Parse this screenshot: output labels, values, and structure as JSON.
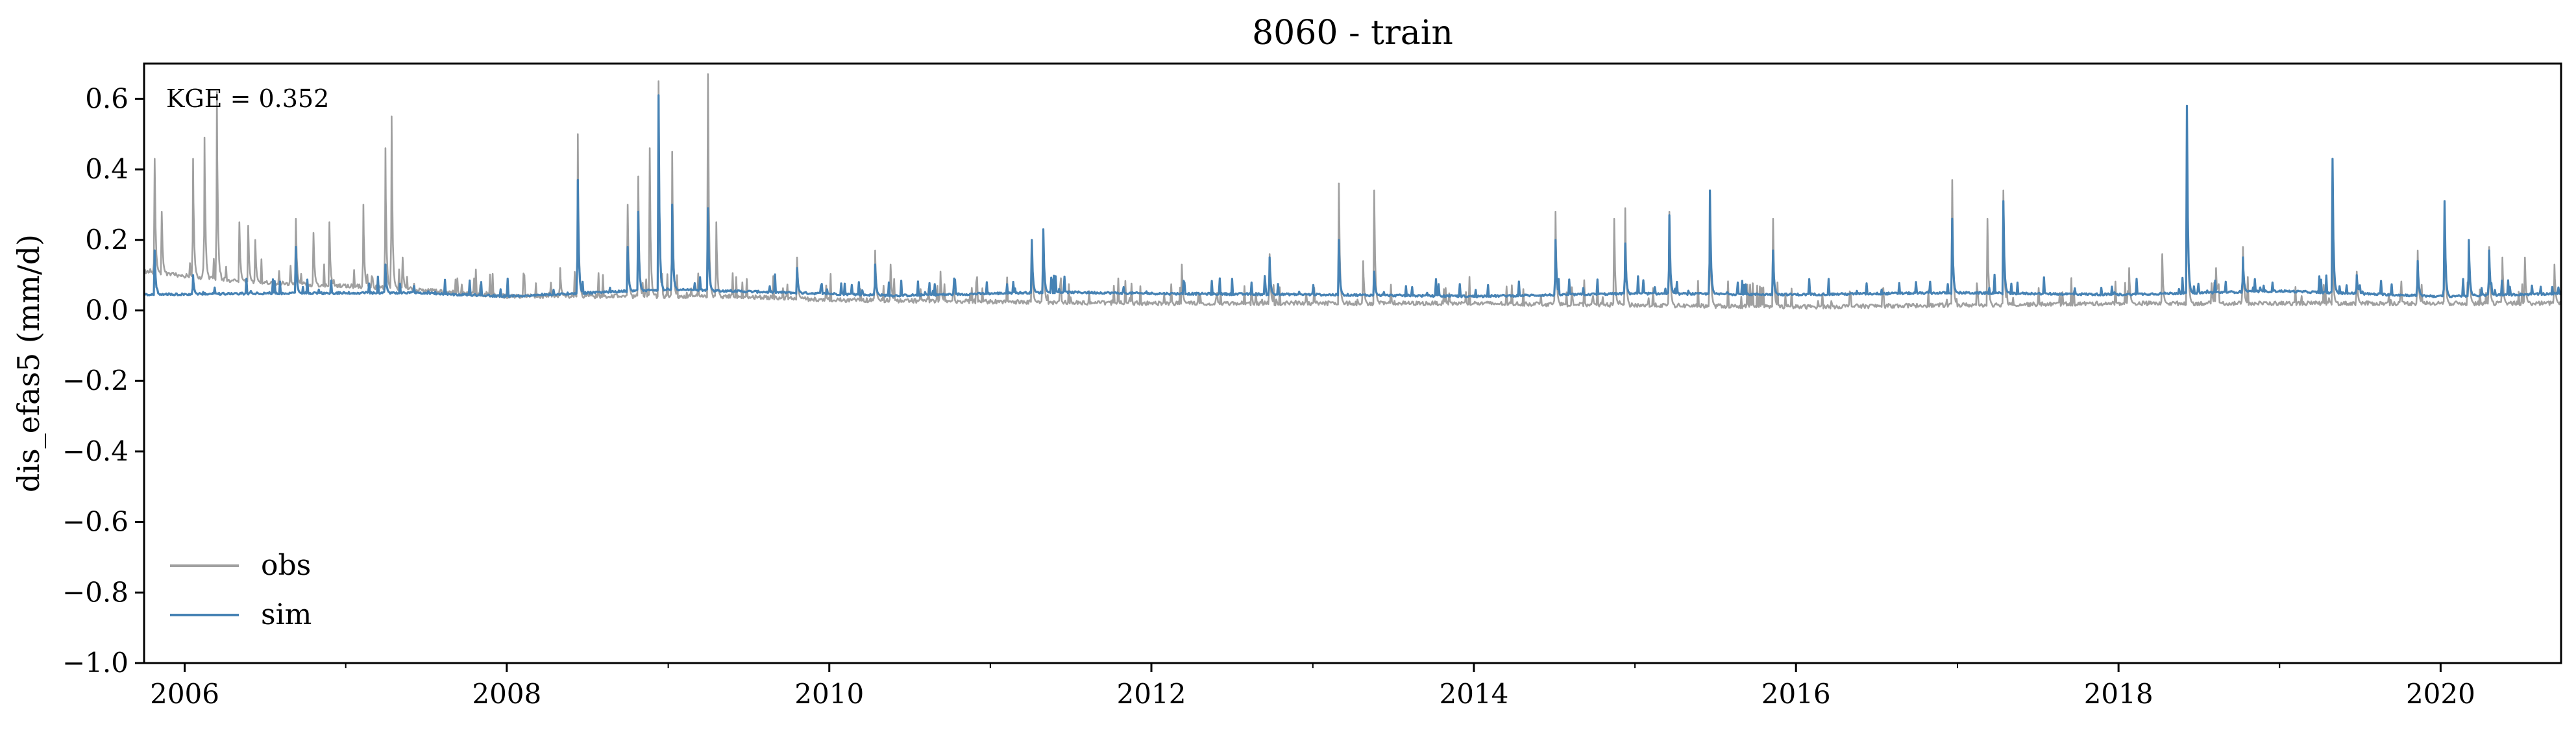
{
  "chart_data": {
    "type": "line",
    "title": "8060 - train",
    "xlabel": "",
    "ylabel": "dis_efas5 (mm/d)",
    "xlim": [
      "2005-10-01",
      "2020-09-30"
    ],
    "ylim": [
      -1.0,
      0.7
    ],
    "yticks": [
      -1.0,
      -0.8,
      -0.6,
      -0.4,
      -0.2,
      0.0,
      0.2,
      0.4,
      0.6
    ],
    "ytick_labels": [
      "−1.0",
      "−0.8",
      "−0.6",
      "−0.4",
      "−0.2",
      "0.0",
      "0.2",
      "0.4",
      "0.6"
    ],
    "xticks": [
      "2006-01-01",
      "2008-01-01",
      "2010-01-01",
      "2012-01-01",
      "2014-01-01",
      "2016-01-01",
      "2018-01-01",
      "2020-01-01"
    ],
    "xtick_labels": [
      "2006",
      "2008",
      "2010",
      "2012",
      "2014",
      "2016",
      "2018",
      "2020"
    ],
    "minor_xticks_yearly": true,
    "grid": false,
    "legend": {
      "placement": "lower-left",
      "entries": [
        "obs",
        "sim"
      ]
    },
    "annotation": "KGE = 0.352",
    "series": [
      {
        "name": "obs",
        "color": "#a0a0a0",
        "baseline": [
          [
            "2005-10-01",
            0.11
          ],
          [
            "2006-06-01",
            0.08
          ],
          [
            "2007-01-01",
            0.07
          ],
          [
            "2007-06-01",
            0.06
          ],
          [
            "2008-01-01",
            0.04
          ],
          [
            "2009-06-01",
            0.04
          ],
          [
            "2010-01-01",
            0.03
          ],
          [
            "2012-01-01",
            0.02
          ],
          [
            "2014-01-01",
            0.02
          ],
          [
            "2016-01-01",
            0.01
          ],
          [
            "2018-01-01",
            0.02
          ],
          [
            "2020-01-01",
            0.02
          ],
          [
            "2020-09-30",
            0.02
          ]
        ],
        "peaks": [
          [
            "2005-10-25",
            0.43
          ],
          [
            "2005-11-10",
            0.28
          ],
          [
            "2006-01-20",
            0.43
          ],
          [
            "2006-02-15",
            0.49
          ],
          [
            "2006-03-15",
            0.62
          ],
          [
            "2006-05-05",
            0.25
          ],
          [
            "2006-05-25",
            0.24
          ],
          [
            "2006-06-10",
            0.2
          ],
          [
            "2006-09-10",
            0.26
          ],
          [
            "2006-10-20",
            0.22
          ],
          [
            "2006-11-25",
            0.25
          ],
          [
            "2007-02-10",
            0.3
          ],
          [
            "2007-04-01",
            0.46
          ],
          [
            "2007-04-15",
            0.55
          ],
          [
            "2007-05-10",
            0.15
          ],
          [
            "2008-05-01",
            0.12
          ],
          [
            "2008-06-10",
            0.5
          ],
          [
            "2008-10-01",
            0.3
          ],
          [
            "2008-10-25",
            0.38
          ],
          [
            "2008-11-20",
            0.46
          ],
          [
            "2008-12-10",
            0.65
          ],
          [
            "2009-01-10",
            0.45
          ],
          [
            "2009-04-01",
            0.67
          ],
          [
            "2009-04-20",
            0.25
          ],
          [
            "2009-10-20",
            0.15
          ],
          [
            "2010-04-15",
            0.17
          ],
          [
            "2010-05-20",
            0.13
          ],
          [
            "2010-09-10",
            0.11
          ],
          [
            "2011-04-05",
            0.17
          ],
          [
            "2011-05-01",
            0.23
          ],
          [
            "2012-03-10",
            0.13
          ],
          [
            "2012-09-25",
            0.16
          ],
          [
            "2013-03-01",
            0.36
          ],
          [
            "2013-04-25",
            0.14
          ],
          [
            "2013-05-20",
            0.34
          ],
          [
            "2014-07-05",
            0.28
          ],
          [
            "2014-11-15",
            0.26
          ],
          [
            "2014-12-10",
            0.29
          ],
          [
            "2015-03-20",
            0.28
          ],
          [
            "2015-06-20",
            0.3
          ],
          [
            "2015-11-10",
            0.26
          ],
          [
            "2016-12-20",
            0.37
          ],
          [
            "2017-03-10",
            0.26
          ],
          [
            "2017-04-15",
            0.34
          ],
          [
            "2018-01-25",
            0.12
          ],
          [
            "2018-04-10",
            0.16
          ],
          [
            "2018-06-05",
            0.57
          ],
          [
            "2018-08-10",
            0.12
          ],
          [
            "2018-10-10",
            0.18
          ],
          [
            "2019-05-01",
            0.18
          ],
          [
            "2019-06-25",
            0.11
          ],
          [
            "2019-11-10",
            0.17
          ],
          [
            "2020-01-10",
            0.25
          ],
          [
            "2020-03-05",
            0.2
          ],
          [
            "2020-04-20",
            0.18
          ],
          [
            "2020-05-20",
            0.15
          ],
          [
            "2020-07-10",
            0.15
          ],
          [
            "2020-09-15",
            0.13
          ]
        ]
      },
      {
        "name": "sim",
        "color": "#4682b4",
        "baseline": [
          [
            "2005-10-01",
            0.045
          ],
          [
            "2006-06-01",
            0.048
          ],
          [
            "2007-06-01",
            0.05
          ],
          [
            "2008-01-01",
            0.04
          ],
          [
            "2009-01-01",
            0.06
          ],
          [
            "2010-06-01",
            0.042
          ],
          [
            "2011-06-01",
            0.052
          ],
          [
            "2012-01-01",
            0.048
          ],
          [
            "2013-01-01",
            0.045
          ],
          [
            "2014-01-01",
            0.04
          ],
          [
            "2015-01-01",
            0.048
          ],
          [
            "2016-01-01",
            0.045
          ],
          [
            "2017-01-01",
            0.05
          ],
          [
            "2018-01-01",
            0.045
          ],
          [
            "2019-01-01",
            0.055
          ],
          [
            "2020-01-01",
            0.04
          ],
          [
            "2020-09-30",
            0.048
          ]
        ],
        "peaks": [
          [
            "2005-10-25",
            0.17
          ],
          [
            "2006-01-20",
            0.1
          ],
          [
            "2006-09-10",
            0.18
          ],
          [
            "2007-04-01",
            0.13
          ],
          [
            "2008-06-10",
            0.37
          ],
          [
            "2008-10-01",
            0.18
          ],
          [
            "2008-10-25",
            0.28
          ],
          [
            "2008-12-10",
            0.61
          ],
          [
            "2009-01-10",
            0.3
          ],
          [
            "2009-04-01",
            0.29
          ],
          [
            "2009-10-20",
            0.12
          ],
          [
            "2010-04-15",
            0.13
          ],
          [
            "2011-04-05",
            0.2
          ],
          [
            "2011-05-01",
            0.23
          ],
          [
            "2012-09-25",
            0.15
          ],
          [
            "2013-03-01",
            0.2
          ],
          [
            "2013-05-20",
            0.11
          ],
          [
            "2014-07-05",
            0.2
          ],
          [
            "2014-12-10",
            0.19
          ],
          [
            "2015-03-20",
            0.27
          ],
          [
            "2015-06-20",
            0.34
          ],
          [
            "2015-11-10",
            0.17
          ],
          [
            "2016-12-20",
            0.26
          ],
          [
            "2017-04-15",
            0.31
          ],
          [
            "2018-06-05",
            0.58
          ],
          [
            "2018-10-10",
            0.15
          ],
          [
            "2019-05-01",
            0.43
          ],
          [
            "2019-06-25",
            0.1
          ],
          [
            "2019-11-10",
            0.14
          ],
          [
            "2020-01-10",
            0.31
          ],
          [
            "2020-03-05",
            0.2
          ],
          [
            "2020-04-20",
            0.17
          ]
        ]
      }
    ]
  }
}
